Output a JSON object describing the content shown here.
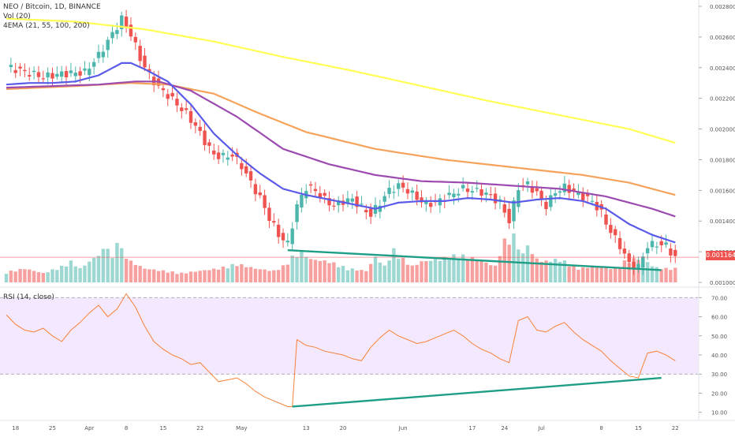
{
  "header": {
    "symbol_line": "NEO / Bitcoin, 1D, BINANCE",
    "volume_label": "Vol (20)",
    "ema_label": "4EMA (21, 55, 100, 200)",
    "rsi_label": "RSI (14, close)"
  },
  "price_tag": "0.001164",
  "colors": {
    "up": "#4db6ac",
    "down": "#ef5350",
    "ema21": "#5b5bea",
    "ema55": "#9c4ab0",
    "ema100": "#f5a25a",
    "ema200": "#ffff55",
    "rsi": "#f7823a",
    "trendline": "#1e9e86",
    "rsi_band": "#f3e8fd"
  },
  "chart_data": [
    {
      "type": "candlestick",
      "title": "NEO / Bitcoin, 1D, BINANCE",
      "x_ticks": [
        "18",
        "25",
        "Apr",
        "8",
        "15",
        "22",
        "May",
        "13",
        "20",
        "Jun",
        "17",
        "24",
        "Jul",
        "8",
        "15",
        "22"
      ],
      "y_ticks": [
        "0.002800",
        "0.002600",
        "0.002400",
        "0.002200",
        "0.002000",
        "0.001800",
        "0.001600",
        "0.001400",
        "0.001200",
        "0.001000"
      ],
      "ylim": [
        0.001,
        0.0028
      ],
      "last_price": 0.001164,
      "close_path": [
        [
          0,
          0.00241
        ],
        [
          3,
          0.00238
        ],
        [
          8,
          0.00234
        ],
        [
          12,
          0.00236
        ],
        [
          17,
          0.00237
        ],
        [
          20,
          0.00248
        ],
        [
          23,
          0.00262
        ],
        [
          25,
          0.00272
        ],
        [
          27,
          0.00262
        ],
        [
          29,
          0.00246
        ],
        [
          31,
          0.00235
        ],
        [
          33,
          0.00227
        ],
        [
          35,
          0.00222
        ],
        [
          37,
          0.00216
        ],
        [
          39,
          0.0021
        ],
        [
          41,
          0.00202
        ],
        [
          43,
          0.00192
        ],
        [
          45,
          0.00183
        ],
        [
          47,
          0.00182
        ],
        [
          49,
          0.00183
        ],
        [
          51,
          0.00176
        ],
        [
          53,
          0.00165
        ],
        [
          55,
          0.00155
        ],
        [
          57,
          0.00142
        ],
        [
          59,
          0.00131
        ],
        [
          61,
          0.00125
        ],
        [
          63,
          0.0015
        ],
        [
          65,
          0.00162
        ],
        [
          67,
          0.0016
        ],
        [
          69,
          0.00154
        ],
        [
          71,
          0.0015
        ],
        [
          73,
          0.00153
        ],
        [
          75,
          0.00154
        ],
        [
          77,
          0.00149
        ],
        [
          79,
          0.00144
        ],
        [
          81,
          0.00152
        ],
        [
          83,
          0.0016
        ],
        [
          85,
          0.00163
        ],
        [
          87,
          0.0016
        ],
        [
          89,
          0.00155
        ],
        [
          91,
          0.00151
        ],
        [
          93,
          0.00152
        ],
        [
          95,
          0.00155
        ],
        [
          97,
          0.00158
        ],
        [
          99,
          0.00161
        ],
        [
          101,
          0.0016
        ],
        [
          103,
          0.00159
        ],
        [
          105,
          0.00156
        ],
        [
          107,
          0.00152
        ],
        [
          109,
          0.0014
        ],
        [
          111,
          0.00162
        ],
        [
          113,
          0.00164
        ],
        [
          115,
          0.00158
        ],
        [
          117,
          0.0015
        ],
        [
          119,
          0.00159
        ],
        [
          121,
          0.00162
        ],
        [
          123,
          0.00159
        ],
        [
          125,
          0.00156
        ],
        [
          127,
          0.00153
        ],
        [
          129,
          0.00145
        ],
        [
          131,
          0.00133
        ],
        [
          133,
          0.00124
        ],
        [
          135,
          0.00112
        ],
        [
          137,
          0.0011
        ],
        [
          139,
          0.00124
        ],
        [
          141,
          0.00125
        ],
        [
          143,
          0.00124
        ],
        [
          145,
          0.00116
        ]
      ],
      "volume_path": [
        [
          0,
          0.22
        ],
        [
          4,
          0.3
        ],
        [
          8,
          0.2
        ],
        [
          12,
          0.34
        ],
        [
          14,
          0.45
        ],
        [
          16,
          0.3
        ],
        [
          20,
          0.6
        ],
        [
          22,
          0.8
        ],
        [
          23,
          0.5
        ],
        [
          24,
          1.0
        ],
        [
          25,
          0.7
        ],
        [
          27,
          0.45
        ],
        [
          30,
          0.3
        ],
        [
          34,
          0.25
        ],
        [
          38,
          0.2
        ],
        [
          42,
          0.25
        ],
        [
          46,
          0.3
        ],
        [
          50,
          0.4
        ],
        [
          54,
          0.3
        ],
        [
          58,
          0.25
        ],
        [
          60,
          0.35
        ],
        [
          62,
          0.55
        ],
        [
          64,
          0.65
        ],
        [
          66,
          0.5
        ],
        [
          70,
          0.45
        ],
        [
          74,
          0.3
        ],
        [
          78,
          0.25
        ],
        [
          80,
          0.55
        ],
        [
          82,
          0.35
        ],
        [
          84,
          0.7
        ],
        [
          86,
          0.5
        ],
        [
          88,
          0.35
        ],
        [
          90,
          0.45
        ],
        [
          94,
          0.5
        ],
        [
          98,
          0.6
        ],
        [
          102,
          0.5
        ],
        [
          106,
          0.35
        ],
        [
          108,
          0.9
        ],
        [
          110,
          1.0
        ],
        [
          112,
          0.6
        ],
        [
          113,
          0.85
        ],
        [
          114,
          0.6
        ],
        [
          116,
          0.45
        ],
        [
          120,
          0.5
        ],
        [
          124,
          0.3
        ],
        [
          128,
          0.35
        ],
        [
          132,
          0.3
        ],
        [
          134,
          0.45
        ],
        [
          136,
          0.5
        ],
        [
          138,
          0.55
        ],
        [
          140,
          0.35
        ],
        [
          142,
          0.3
        ],
        [
          145,
          0.3
        ]
      ],
      "ema21": [
        [
          0,
          0.00229
        ],
        [
          5,
          0.0023
        ],
        [
          10,
          0.0023
        ],
        [
          15,
          0.00231
        ],
        [
          20,
          0.00235
        ],
        [
          25,
          0.00243
        ],
        [
          27,
          0.00243
        ],
        [
          30,
          0.00239
        ],
        [
          35,
          0.00231
        ],
        [
          40,
          0.00216
        ],
        [
          45,
          0.00197
        ],
        [
          50,
          0.00183
        ],
        [
          55,
          0.00171
        ],
        [
          60,
          0.00161
        ],
        [
          65,
          0.00157
        ],
        [
          70,
          0.00154
        ],
        [
          75,
          0.00151
        ],
        [
          80,
          0.00148
        ],
        [
          85,
          0.00152
        ],
        [
          90,
          0.00153
        ],
        [
          95,
          0.00153
        ],
        [
          100,
          0.00155
        ],
        [
          105,
          0.00154
        ],
        [
          110,
          0.00152
        ],
        [
          115,
          0.00154
        ],
        [
          120,
          0.00155
        ],
        [
          125,
          0.00153
        ],
        [
          130,
          0.00148
        ],
        [
          135,
          0.00138
        ],
        [
          140,
          0.00131
        ],
        [
          145,
          0.00126
        ]
      ],
      "ema55": [
        [
          0,
          0.00227
        ],
        [
          10,
          0.00228
        ],
        [
          20,
          0.00229
        ],
        [
          28,
          0.00231
        ],
        [
          33,
          0.00231
        ],
        [
          40,
          0.00225
        ],
        [
          50,
          0.00208
        ],
        [
          60,
          0.00187
        ],
        [
          70,
          0.00177
        ],
        [
          80,
          0.0017
        ],
        [
          90,
          0.00166
        ],
        [
          100,
          0.00165
        ],
        [
          110,
          0.00163
        ],
        [
          120,
          0.00161
        ],
        [
          130,
          0.00156
        ],
        [
          140,
          0.00148
        ],
        [
          145,
          0.00143
        ]
      ],
      "ema100": [
        [
          0,
          0.00226
        ],
        [
          15,
          0.00228
        ],
        [
          27,
          0.0023
        ],
        [
          35,
          0.00229
        ],
        [
          45,
          0.00223
        ],
        [
          55,
          0.0021
        ],
        [
          65,
          0.00198
        ],
        [
          80,
          0.00187
        ],
        [
          95,
          0.0018
        ],
        [
          110,
          0.00175
        ],
        [
          125,
          0.0017
        ],
        [
          135,
          0.00165
        ],
        [
          145,
          0.00157
        ]
      ],
      "ema200": [
        [
          0,
          0.00272
        ],
        [
          15,
          0.0027
        ],
        [
          30,
          0.00265
        ],
        [
          45,
          0.00257
        ],
        [
          60,
          0.00247
        ],
        [
          75,
          0.00238
        ],
        [
          90,
          0.00228
        ],
        [
          105,
          0.00218
        ],
        [
          120,
          0.00209
        ],
        [
          135,
          0.002
        ],
        [
          145,
          0.00191
        ]
      ],
      "trendline": [
        [
          61,
          0.00121
        ],
        [
          142,
          0.00108
        ]
      ]
    },
    {
      "type": "line",
      "title": "RSI (14, close)",
      "y_ticks": [
        "70.00",
        "60.00",
        "50.00",
        "40.00",
        "30.00",
        "20.00",
        "10.00"
      ],
      "ylim": [
        7,
        73
      ],
      "overbought": 70,
      "oversold": 30,
      "values": [
        [
          0,
          61
        ],
        [
          2,
          56
        ],
        [
          4,
          53
        ],
        [
          6,
          52
        ],
        [
          8,
          54
        ],
        [
          10,
          50
        ],
        [
          12,
          47
        ],
        [
          14,
          53
        ],
        [
          16,
          57
        ],
        [
          18,
          62
        ],
        [
          20,
          66
        ],
        [
          22,
          60
        ],
        [
          24,
          64
        ],
        [
          26,
          72
        ],
        [
          28,
          65
        ],
        [
          30,
          55
        ],
        [
          32,
          47
        ],
        [
          34,
          43
        ],
        [
          36,
          40
        ],
        [
          38,
          38
        ],
        [
          40,
          35
        ],
        [
          42,
          36
        ],
        [
          44,
          31
        ],
        [
          46,
          26
        ],
        [
          48,
          27
        ],
        [
          50,
          28
        ],
        [
          52,
          25
        ],
        [
          54,
          21
        ],
        [
          56,
          18
        ],
        [
          58,
          16
        ],
        [
          60,
          14
        ],
        [
          61,
          13
        ],
        [
          62,
          13
        ],
        [
          63,
          48
        ],
        [
          65,
          45
        ],
        [
          67,
          44
        ],
        [
          69,
          42
        ],
        [
          71,
          41
        ],
        [
          73,
          40
        ],
        [
          75,
          38
        ],
        [
          77,
          37
        ],
        [
          79,
          44
        ],
        [
          81,
          49
        ],
        [
          83,
          53
        ],
        [
          85,
          50
        ],
        [
          87,
          48
        ],
        [
          89,
          46
        ],
        [
          91,
          47
        ],
        [
          93,
          49
        ],
        [
          95,
          51
        ],
        [
          97,
          53
        ],
        [
          99,
          50
        ],
        [
          101,
          46
        ],
        [
          103,
          43
        ],
        [
          105,
          41
        ],
        [
          107,
          38
        ],
        [
          109,
          36
        ],
        [
          111,
          58
        ],
        [
          113,
          60
        ],
        [
          115,
          53
        ],
        [
          117,
          52
        ],
        [
          119,
          55
        ],
        [
          121,
          57
        ],
        [
          123,
          52
        ],
        [
          125,
          48
        ],
        [
          127,
          45
        ],
        [
          129,
          42
        ],
        [
          131,
          37
        ],
        [
          133,
          33
        ],
        [
          135,
          29
        ],
        [
          137,
          28
        ],
        [
          139,
          41
        ],
        [
          141,
          42
        ],
        [
          143,
          40
        ],
        [
          145,
          37
        ]
      ],
      "trendline": [
        [
          62,
          13
        ],
        [
          142,
          28
        ]
      ]
    }
  ]
}
